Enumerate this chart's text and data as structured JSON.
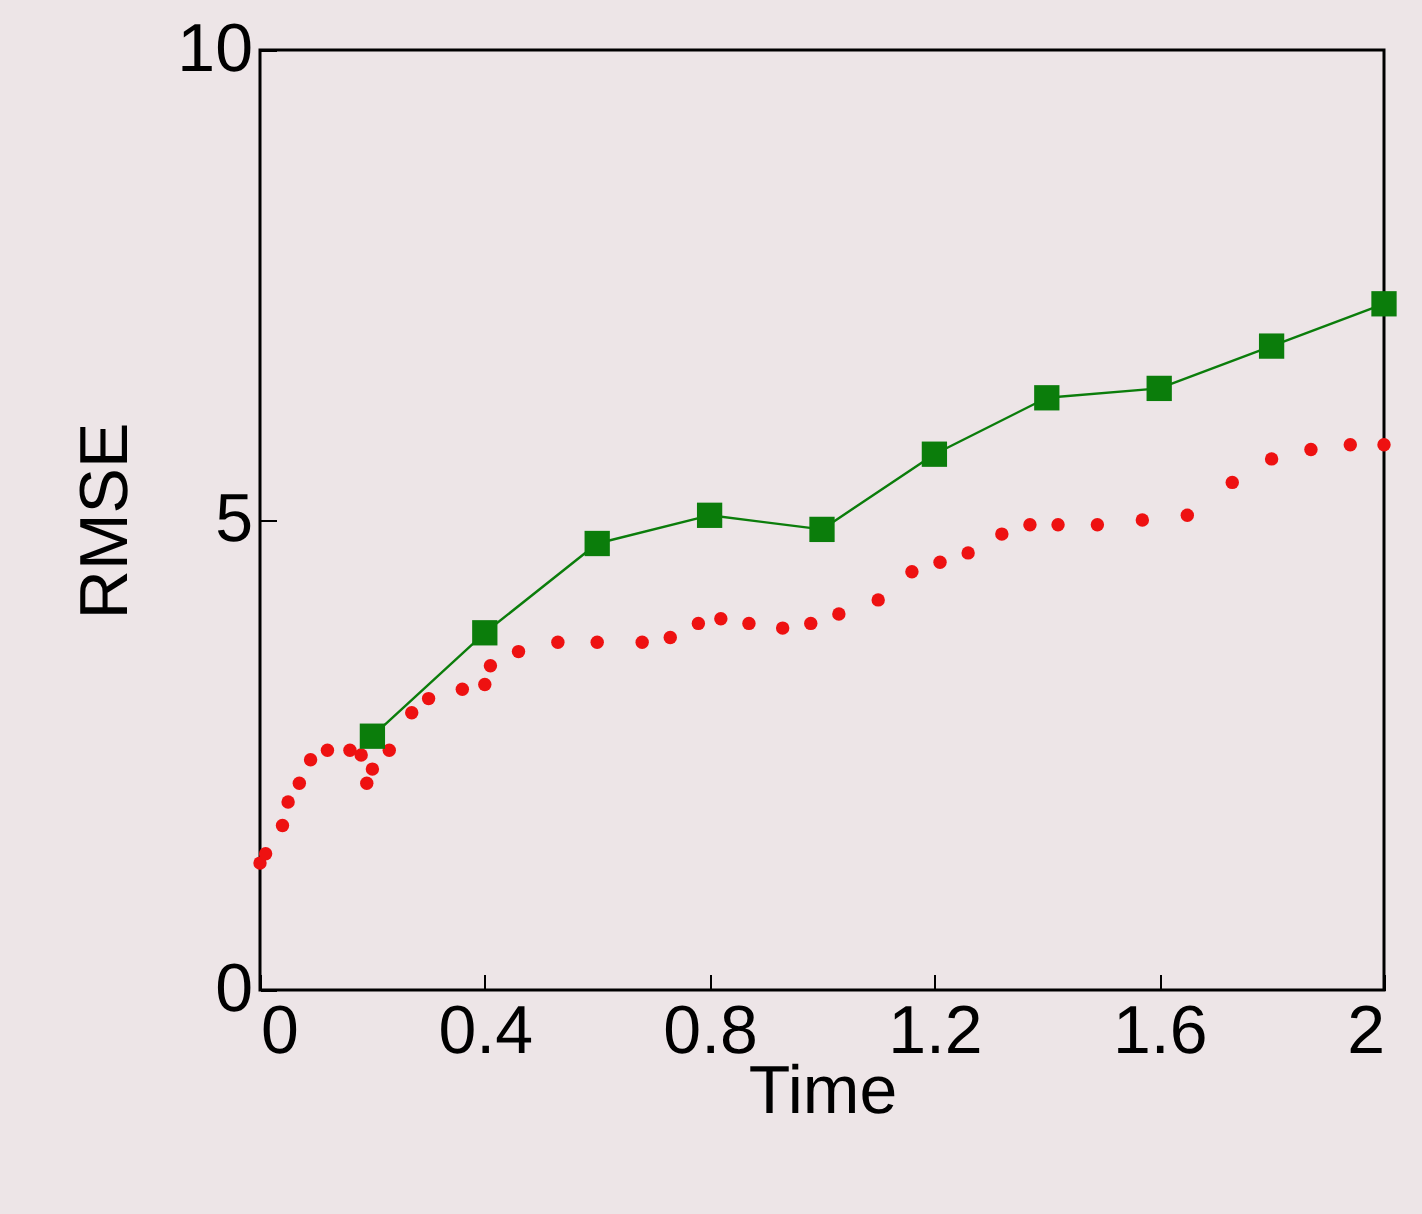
{
  "chart_data": {
    "type": "line",
    "xlabel": "Time",
    "ylabel": "RMSE",
    "xlim": [
      0,
      2
    ],
    "ylim": [
      0,
      10
    ],
    "xticks": [
      0,
      0.4,
      0.8,
      1.2,
      1.6,
      2
    ],
    "yticks": [
      0,
      5,
      10
    ],
    "grid": false,
    "series": [
      {
        "type": "scatter",
        "marker": "circle",
        "color": "#ee1111",
        "x": [
          0,
          0.01,
          0.04,
          0.05,
          0.07,
          0.09,
          0.12,
          0.16,
          0.18,
          0.19,
          0.2,
          0.23,
          0.27,
          0.3,
          0.36,
          0.4,
          0.41,
          0.46,
          0.53,
          0.6,
          0.68,
          0.73,
          0.78,
          0.82,
          0.87,
          0.93,
          0.98,
          1.03,
          1.1,
          1.16,
          1.21,
          1.26,
          1.32,
          1.37,
          1.42,
          1.49,
          1.57,
          1.65,
          1.73,
          1.8,
          1.87,
          1.94,
          2.0
        ],
        "values": [
          1.35,
          1.45,
          1.75,
          2.0,
          2.2,
          2.45,
          2.55,
          2.55,
          2.5,
          2.2,
          2.35,
          2.55,
          2.95,
          3.1,
          3.2,
          3.25,
          3.45,
          3.6,
          3.7,
          3.7,
          3.7,
          3.75,
          3.9,
          3.95,
          3.9,
          3.85,
          3.9,
          4.0,
          4.15,
          4.45,
          4.55,
          4.65,
          4.85,
          4.95,
          4.95,
          4.95,
          5.0,
          5.05,
          5.4,
          5.65,
          5.75,
          5.8,
          5.8
        ]
      },
      {
        "type": "line",
        "marker": "square",
        "color": "#0b7d0b",
        "x": [
          0.2,
          0.4,
          0.6,
          0.8,
          1.0,
          1.2,
          1.4,
          1.6,
          1.8,
          2.0
        ],
        "values": [
          2.7,
          3.8,
          4.75,
          5.05,
          4.9,
          5.7,
          6.3,
          6.4,
          6.85,
          7.3
        ]
      }
    ]
  }
}
